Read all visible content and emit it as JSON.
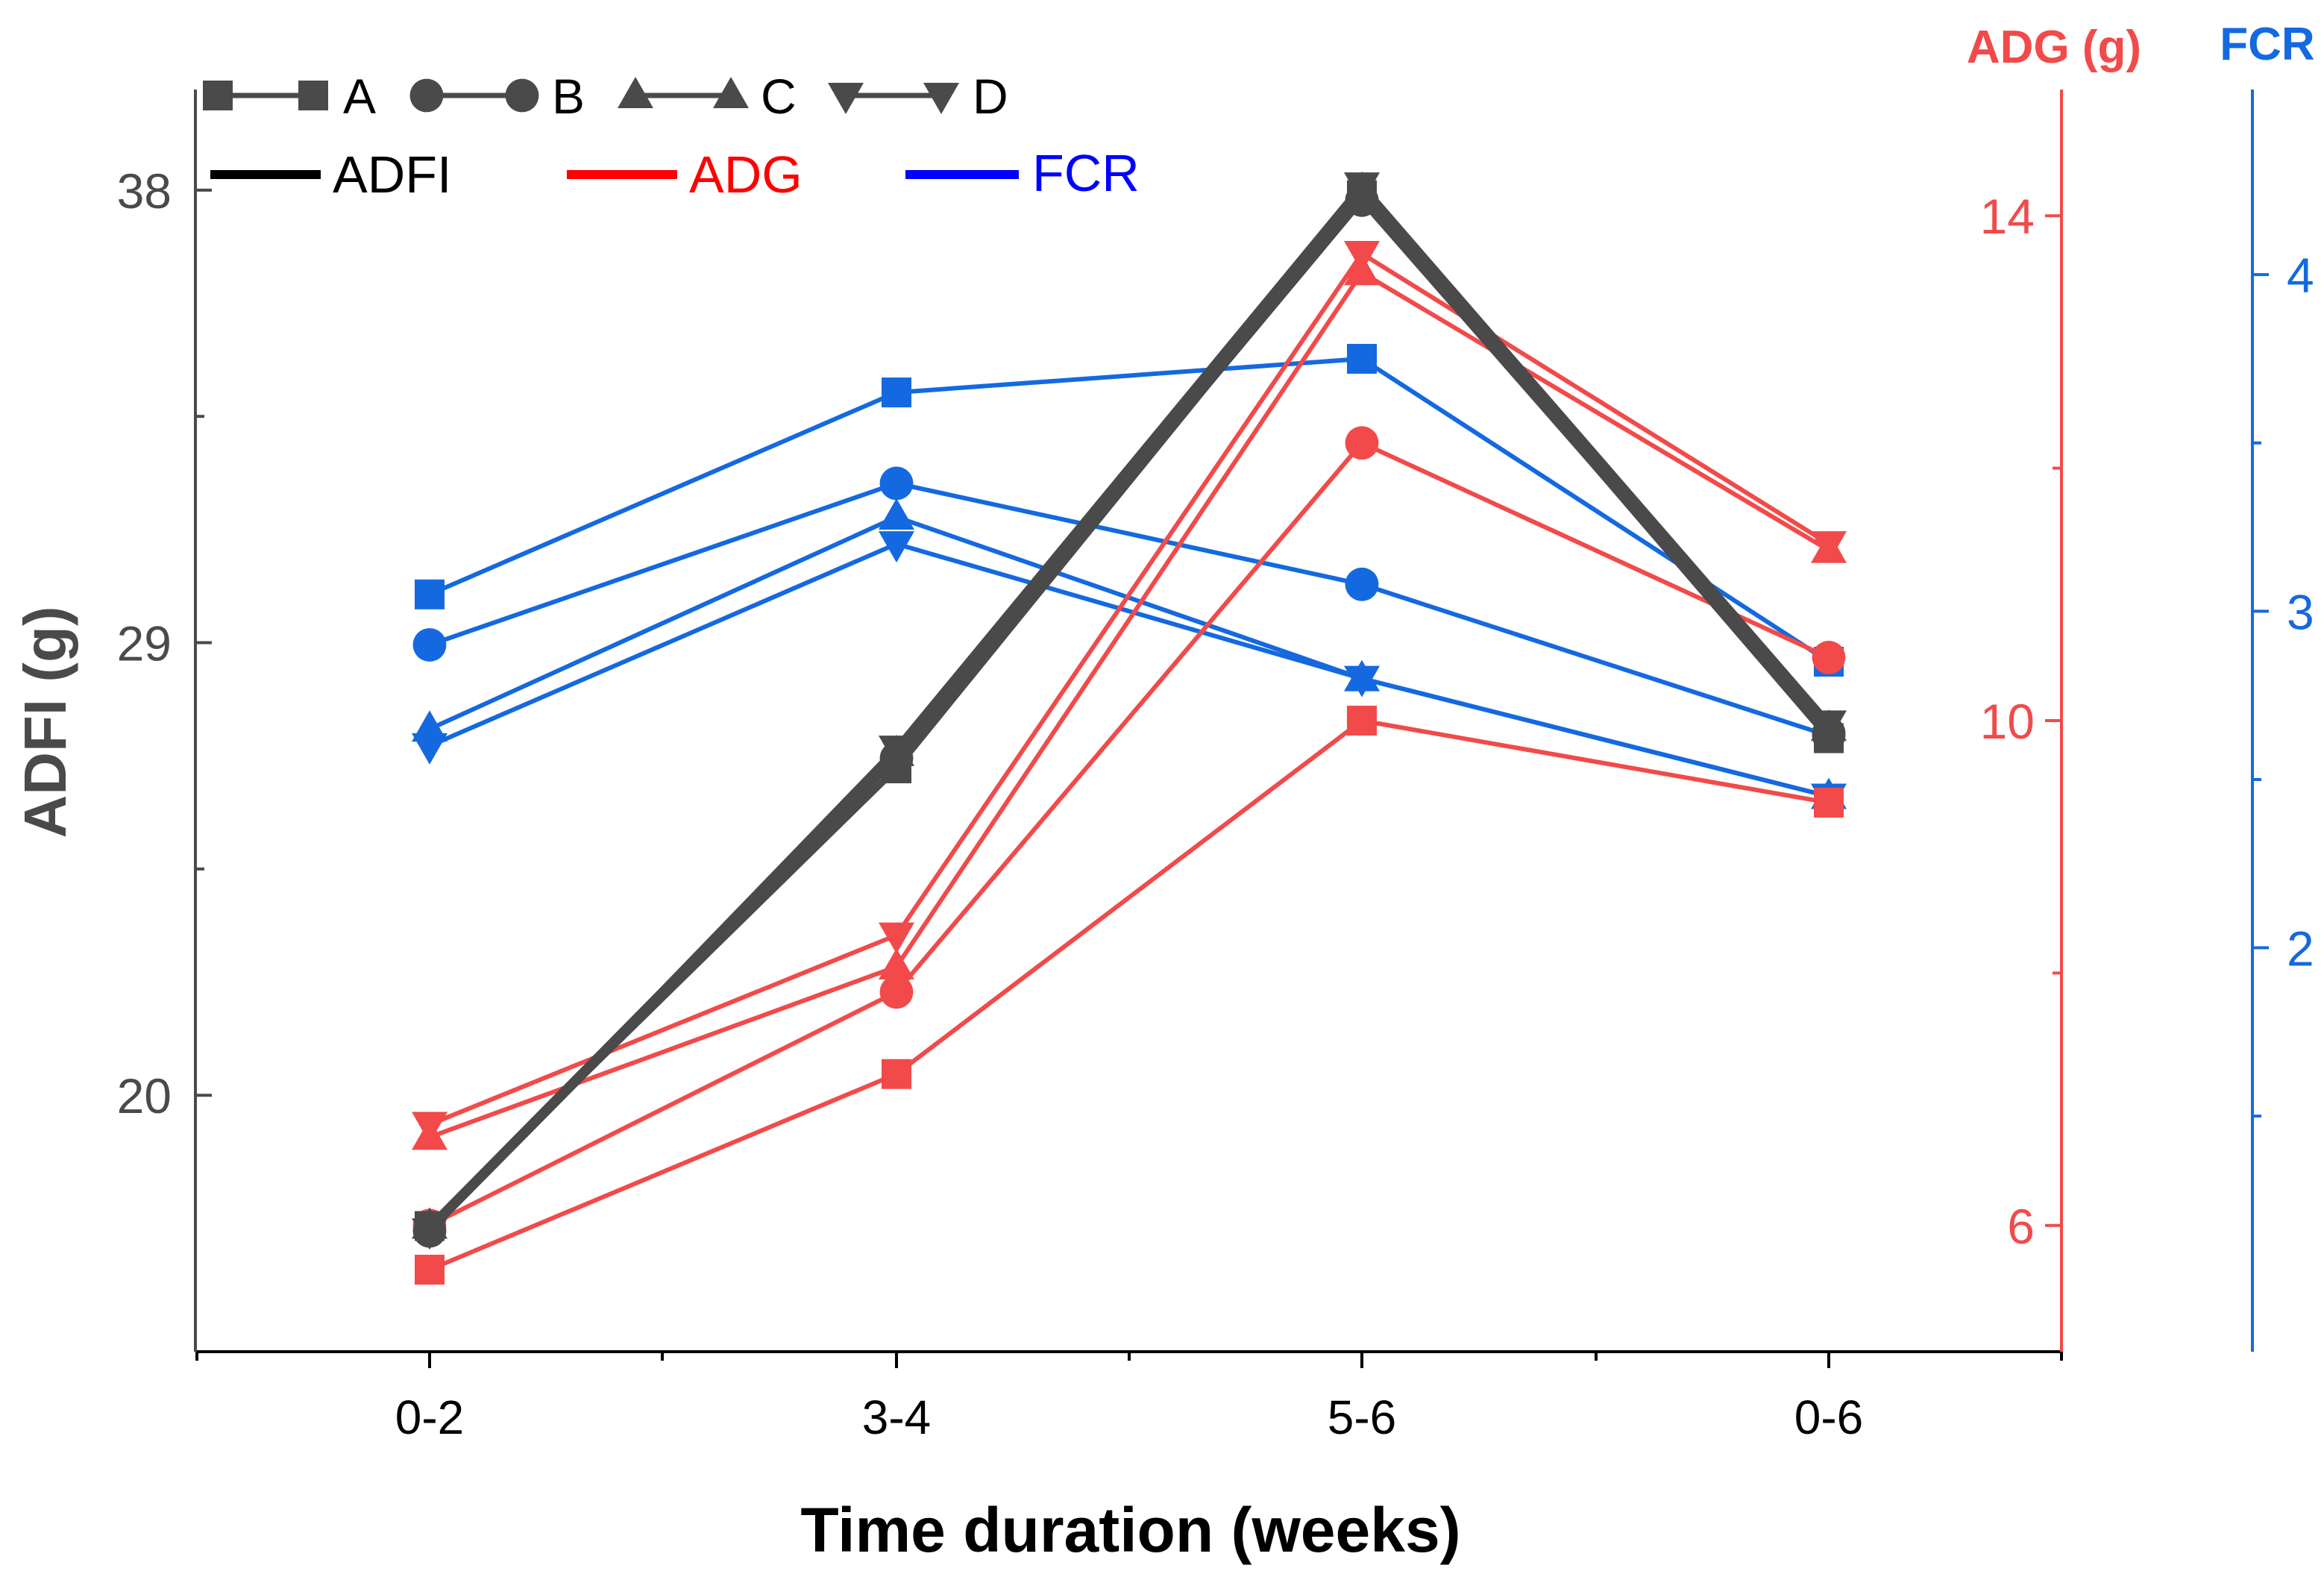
{
  "chart_data": {
    "type": "line",
    "xlabel": "Time duration (weeks)",
    "categories": [
      "0-2",
      "3-4",
      "5-6",
      "0-6"
    ],
    "axes": {
      "left": {
        "label": "ADFI (g)",
        "ticks": [
          20,
          29,
          38
        ],
        "range": [
          14.9,
          40.0
        ],
        "color": "#4a4a4a"
      },
      "right": {
        "label": "ADG (g)",
        "ticks": [
          6,
          10,
          14
        ],
        "range": [
          5.0,
          15.0
        ],
        "color": "#f24a4a"
      },
      "far_right": {
        "label": "FCR",
        "ticks": [
          2,
          3,
          4
        ],
        "range": [
          0.8,
          4.55
        ],
        "color": "#1469e0"
      }
    },
    "legend": {
      "groups": [
        "A",
        "B",
        "C",
        "D"
      ],
      "markers": [
        "square",
        "circle",
        "triangle-up",
        "triangle-down"
      ],
      "metrics": [
        {
          "label": "ADFI",
          "color": "#000000"
        },
        {
          "label": "ADG",
          "color": "#ff0000"
        },
        {
          "label": "FCR",
          "color": "#0000ff"
        }
      ],
      "placement": "top-left"
    },
    "colors": {
      "ADFI": "#4a4a4a",
      "ADG": "#f24a4a",
      "FCR": "#1469e0"
    },
    "series": [
      {
        "metric": "ADFI",
        "group": "A",
        "axis": "left",
        "marker": "square",
        "values": [
          17.4,
          26.5,
          37.9,
          27.1
        ]
      },
      {
        "metric": "ADFI",
        "group": "B",
        "axis": "left",
        "marker": "circle",
        "values": [
          17.3,
          26.7,
          37.8,
          27.2
        ]
      },
      {
        "metric": "ADFI",
        "group": "C",
        "axis": "left",
        "marker": "triangle-up",
        "values": [
          17.4,
          26.8,
          38.0,
          27.3
        ]
      },
      {
        "metric": "ADFI",
        "group": "D",
        "axis": "left",
        "marker": "triangle-down",
        "values": [
          17.3,
          26.9,
          38.1,
          27.4
        ]
      },
      {
        "metric": "ADG",
        "group": "A",
        "axis": "right",
        "marker": "square",
        "values": [
          5.65,
          7.2,
          10.0,
          9.35
        ]
      },
      {
        "metric": "ADG",
        "group": "B",
        "axis": "right",
        "marker": "circle",
        "values": [
          6.0,
          7.85,
          12.2,
          10.5
        ]
      },
      {
        "metric": "ADG",
        "group": "C",
        "axis": "right",
        "marker": "triangle-up",
        "values": [
          6.7,
          8.05,
          13.55,
          11.35
        ]
      },
      {
        "metric": "ADG",
        "group": "D",
        "axis": "right",
        "marker": "triangle-down",
        "values": [
          6.8,
          8.3,
          13.7,
          11.4
        ]
      },
      {
        "metric": "FCR",
        "group": "A",
        "axis": "far_right",
        "marker": "square",
        "values": [
          3.05,
          3.65,
          3.75,
          2.85
        ]
      },
      {
        "metric": "FCR",
        "group": "B",
        "axis": "far_right",
        "marker": "circle",
        "values": [
          2.9,
          3.38,
          3.08,
          2.63
        ]
      },
      {
        "metric": "FCR",
        "group": "C",
        "axis": "far_right",
        "marker": "triangle-up",
        "values": [
          2.65,
          3.28,
          2.8,
          2.45
        ]
      },
      {
        "metric": "FCR",
        "group": "D",
        "axis": "far_right",
        "marker": "triangle-down",
        "values": [
          2.6,
          3.2,
          2.8,
          2.45
        ]
      }
    ]
  }
}
